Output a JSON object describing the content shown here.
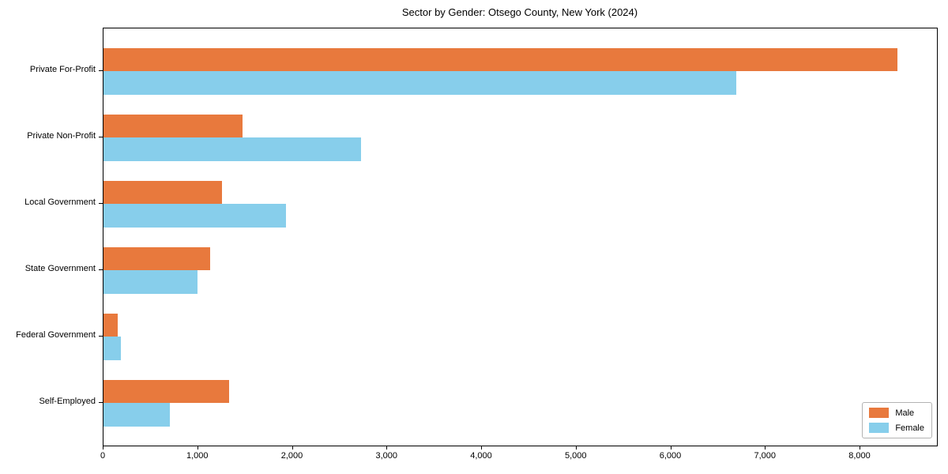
{
  "title": "Sector by Gender: Otsego County, New York (2024)",
  "chart_data": {
    "type": "bar",
    "orientation": "horizontal",
    "title": "Sector by Gender: Otsego County, New York (2024)",
    "categories": [
      "Private For-Profit",
      "Private Non-Profit",
      "Local Government",
      "State Government",
      "Federal Government",
      "Self-Employed"
    ],
    "series": [
      {
        "name": "Male",
        "color": "#e8793d",
        "values": [
          8390,
          1470,
          1250,
          1130,
          150,
          1330
        ]
      },
      {
        "name": "Female",
        "color": "#87ceeb",
        "values": [
          6690,
          2720,
          1930,
          990,
          180,
          700
        ]
      }
    ],
    "xlim": [
      0,
      8810
    ],
    "xticks": [
      0,
      1000,
      2000,
      3000,
      4000,
      5000,
      6000,
      7000,
      8000
    ],
    "xtick_labels": [
      "0",
      "1,000",
      "2,000",
      "3,000",
      "4,000",
      "5,000",
      "6,000",
      "7,000",
      "8,000"
    ],
    "xlabel": "",
    "ylabel": "",
    "grid": false,
    "legend_position": "lower right"
  }
}
